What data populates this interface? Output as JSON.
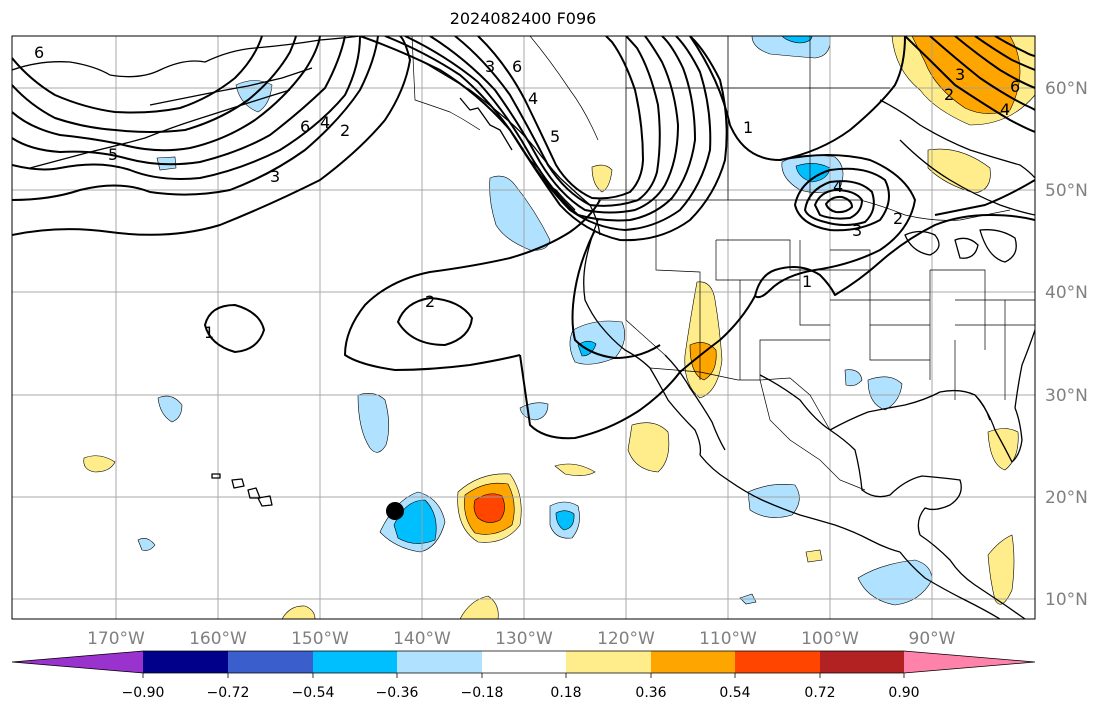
{
  "title": "2024082400 F096",
  "map": {
    "extent_lon": [
      -180,
      -80
    ],
    "extent_lat": [
      8,
      65
    ],
    "lon_ticks": [
      {
        "lon": -170,
        "label": "170°W"
      },
      {
        "lon": -160,
        "label": "160°W"
      },
      {
        "lon": -150,
        "label": "150°W"
      },
      {
        "lon": -140,
        "label": "140°W"
      },
      {
        "lon": -130,
        "label": "130°W"
      },
      {
        "lon": -120,
        "label": "120°W"
      },
      {
        "lon": -110,
        "label": "110°W"
      },
      {
        "lon": -100,
        "label": "100°W"
      },
      {
        "lon": -90,
        "label": "90°W"
      }
    ],
    "lat_ticks": [
      {
        "lat": 10,
        "label": "10°N"
      },
      {
        "lat": 20,
        "label": "20°N"
      },
      {
        "lat": 30,
        "label": "30°N"
      },
      {
        "lat": 40,
        "label": "40°N"
      },
      {
        "lat": 50,
        "label": "50°N"
      },
      {
        "lat": 60,
        "label": "60°N"
      }
    ],
    "gridlines": true,
    "contour_labels": [
      "1",
      "2",
      "3",
      "4",
      "5",
      "6"
    ],
    "storm_marker": {
      "lon": -142.5,
      "lat": 18.5
    }
  },
  "colorbar": {
    "ticks": [
      "−0.90",
      "−0.72",
      "−0.54",
      "−0.36",
      "−0.18",
      "0.18",
      "0.36",
      "0.54",
      "0.72",
      "0.90"
    ],
    "colors": [
      "#9a32cd",
      "#00008b",
      "#3a5fcd",
      "#00bfff",
      "#b0e2ff",
      "#ffffff",
      "#ffec8b",
      "#ffa500",
      "#ff4500",
      "#b22222",
      "#ff82ab"
    ]
  }
}
